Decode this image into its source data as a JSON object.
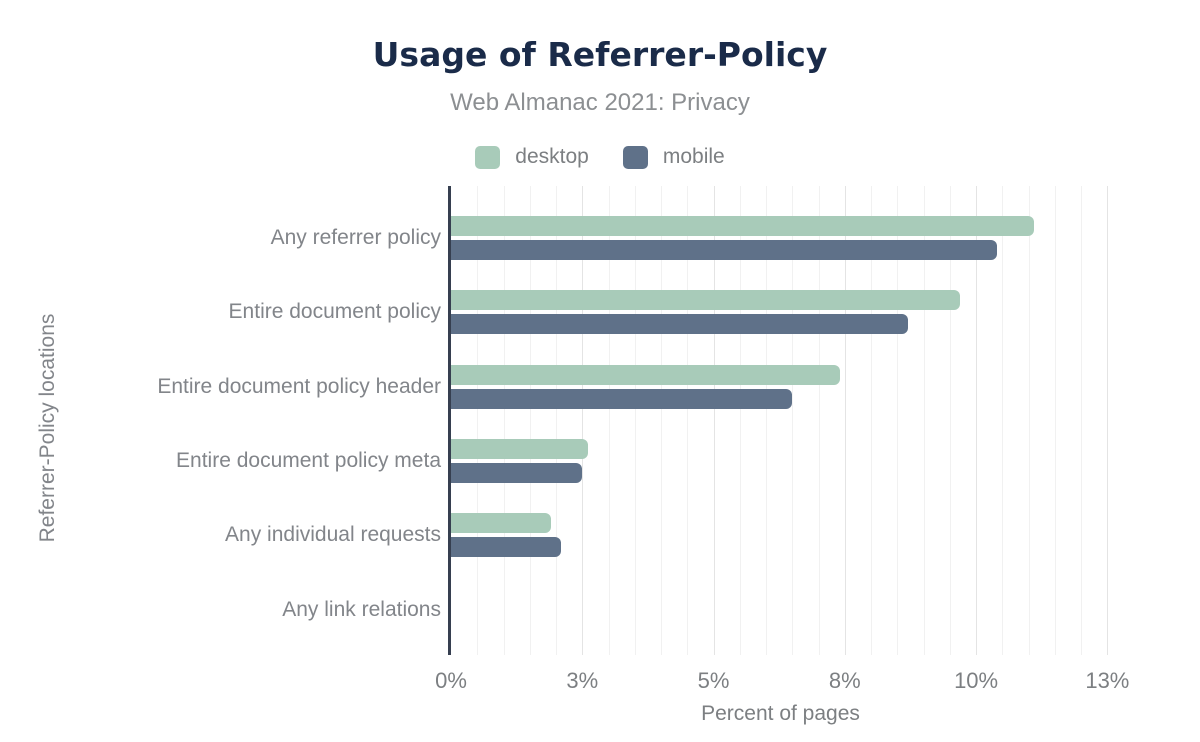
{
  "chart_data": {
    "type": "bar",
    "orientation": "horizontal",
    "title": "Usage of Referrer-Policy",
    "subtitle": "Web Almanac 2021: Privacy",
    "xlabel": "Percent of pages",
    "ylabel": "Referrer-Policy locations",
    "categories": [
      "Any referrer policy",
      "Entire document policy",
      "Entire document policy header",
      "Entire document policy meta",
      "Any individual requests",
      "Any link relations"
    ],
    "series": [
      {
        "name": "desktop",
        "color": "#a8cbb9",
        "values": [
          11.1,
          9.7,
          7.4,
          2.6,
          1.9,
          0
        ]
      },
      {
        "name": "mobile",
        "color": "#5f7189",
        "values": [
          10.4,
          8.7,
          6.5,
          2.5,
          2.1,
          0
        ]
      }
    ],
    "x_axis": {
      "min": 0,
      "max": 12.55,
      "minor_step": 0.5,
      "major_step": 2.5,
      "ticks": [
        {
          "value": 0,
          "label": "0%"
        },
        {
          "value": 2.5,
          "label": "3%"
        },
        {
          "value": 5,
          "label": "5%"
        },
        {
          "value": 7.5,
          "label": "8%"
        },
        {
          "value": 10,
          "label": "10%"
        },
        {
          "value": 12.5,
          "label": "13%"
        }
      ]
    },
    "grid": "vertical minor + major, no baseline",
    "legend_position": "top"
  },
  "colors": {
    "title": "#1a2b49",
    "subtitle": "#8c8f92",
    "axis_text": "#7c7f82",
    "category_text": "#82858a",
    "axis_line": "#363f50",
    "grid_minor": "#f1f1f1",
    "grid_major": "#e4e4e4",
    "desktop": "#a8cbb9",
    "mobile": "#5f7189",
    "background": "#ffffff"
  }
}
